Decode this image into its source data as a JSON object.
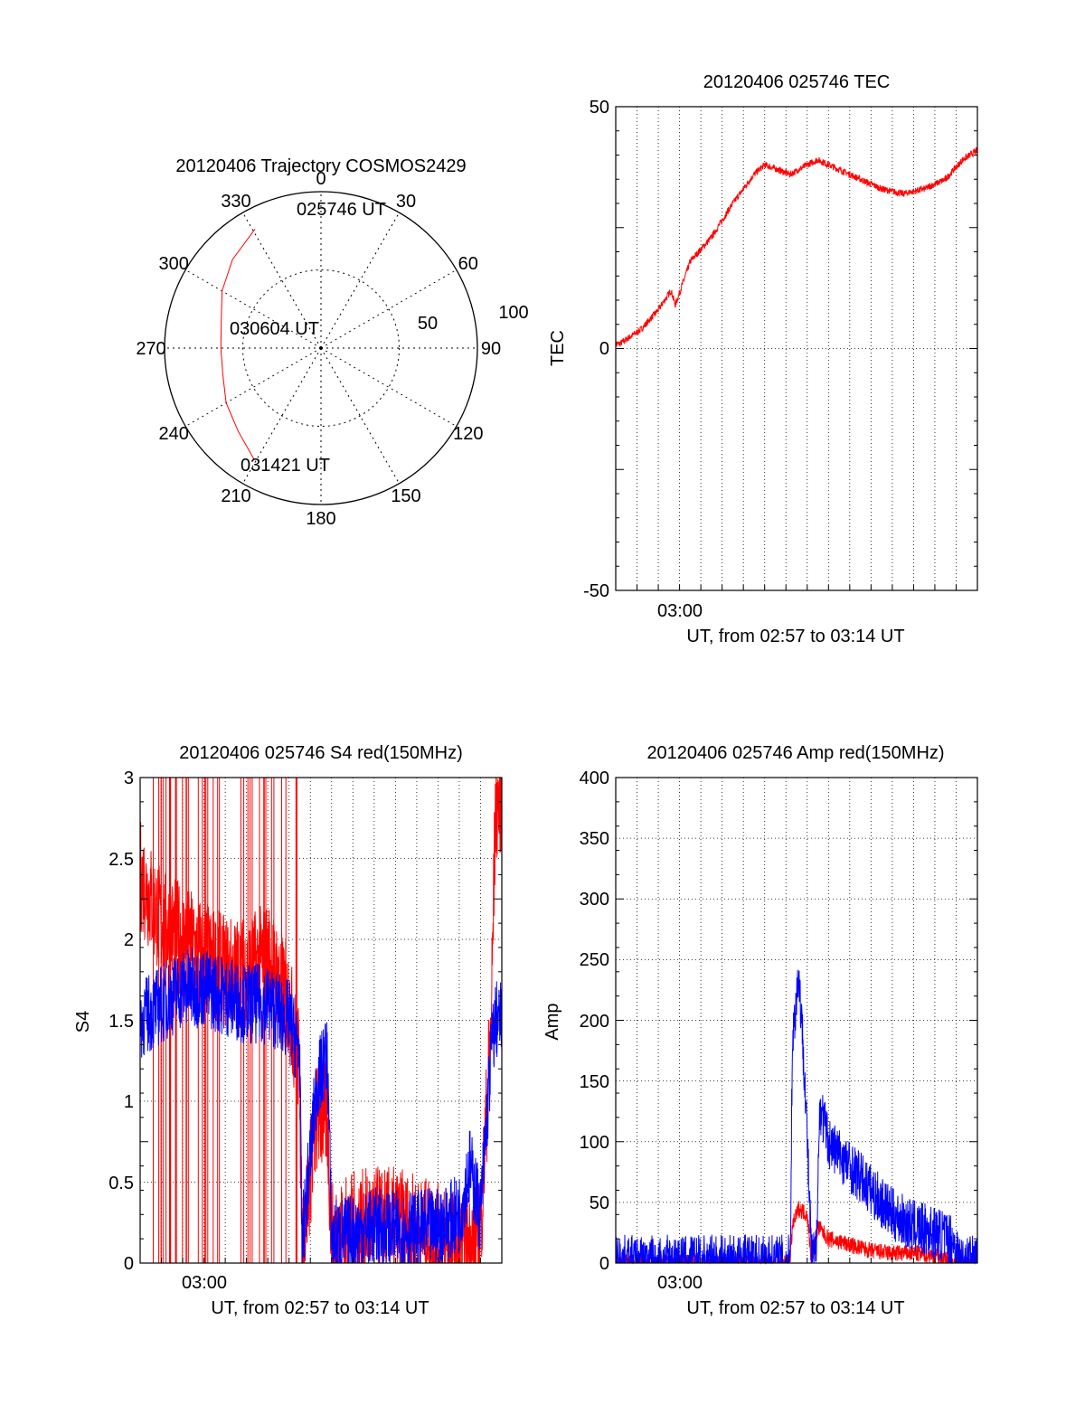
{
  "colors": {
    "red": "#ff0000",
    "blue": "#0000ff",
    "axis": "#000000",
    "grid": "#000000"
  },
  "chart_data": [
    {
      "type": "polar",
      "id": "traj",
      "title": "20120406 Trajectory COSMOS2429",
      "angle_labels": [
        "0",
        "30",
        "60",
        "90",
        "120",
        "150",
        "180",
        "210",
        "240",
        "270",
        "300",
        "330"
      ],
      "radius_labels": [
        "50",
        "100"
      ],
      "rlim": [
        0,
        100
      ],
      "annotations": [
        "025746 UT",
        "030604 UT",
        "031421 UT"
      ],
      "trajectory": {
        "color": "#ff0000",
        "points": [
          [
            331,
            87
          ],
          [
            315,
            80
          ],
          [
            300,
            73
          ],
          [
            285,
            66
          ],
          [
            270,
            64
          ],
          [
            255,
            65
          ],
          [
            240,
            70
          ],
          [
            225,
            75
          ],
          [
            211,
            83
          ]
        ]
      }
    },
    {
      "type": "line",
      "id": "tec",
      "title": "20120406 025746 TEC",
      "xlabel": "UT, from 02:57 to 03:14 UT",
      "ylabel": "TEC",
      "xlim": [
        0,
        17
      ],
      "ylim": [
        -50,
        50
      ],
      "yticks": [
        "50",
        "0",
        "-50"
      ],
      "xtick_label": "03:00",
      "grid": true,
      "series": [
        {
          "color": "#ff0000",
          "x": [
            0.2,
            1.2,
            2.0,
            2.6,
            2.8,
            3.5,
            4.5,
            5.5,
            6.5,
            7.0,
            7.6,
            8.2,
            9.0,
            9.5,
            10.5,
            11.5,
            12.5,
            13.5,
            14.5,
            15.5,
            16.3,
            17.0
          ],
          "y": [
            1,
            4,
            8,
            12,
            9,
            18,
            23,
            30,
            36,
            38,
            37,
            36,
            38,
            39,
            37,
            35,
            33,
            32,
            33,
            35,
            39,
            41
          ],
          "noise": 0.7
        }
      ]
    },
    {
      "type": "line",
      "id": "s4",
      "title": "20120406 025746 S4 red(150MHz)",
      "xlabel": "UT, from 02:57 to 03:14 UT",
      "ylabel": "S4",
      "xlim": [
        0,
        17
      ],
      "ylim": [
        0,
        3
      ],
      "yticks": [
        "3",
        "2.5",
        "2",
        "1.5",
        "1",
        "0.5",
        "0"
      ],
      "xtick_label": "03:00",
      "grid": true,
      "series": [
        {
          "color": "#ff0000",
          "x": [
            0,
            1,
            2,
            3,
            4,
            5,
            6,
            7,
            7.5,
            7.6,
            8.3,
            8.8,
            9,
            10,
            11,
            12,
            13,
            14,
            15,
            15.5,
            16,
            16.5,
            16.7,
            17
          ],
          "y": [
            2.4,
            2.1,
            2.0,
            1.9,
            1.8,
            1.8,
            1.9,
            1.6,
            1.2,
            0.1,
            0.9,
            0.9,
            0.15,
            0.22,
            0.25,
            0.25,
            0.2,
            0.15,
            0.1,
            0.1,
            0.2,
            1.5,
            2.8,
            2.9
          ],
          "noise": 0.35
        },
        {
          "color": "#0000ff",
          "x": [
            0,
            1,
            2,
            3,
            4,
            5,
            6,
            7,
            7.5,
            7.6,
            8.3,
            8.8,
            9,
            10,
            11,
            12,
            13,
            14,
            15,
            15.5,
            16,
            16.5,
            16.7,
            17
          ],
          "y": [
            1.5,
            1.6,
            1.7,
            1.7,
            1.65,
            1.6,
            1.6,
            1.5,
            1.3,
            0.1,
            1.1,
            1.3,
            0.15,
            0.18,
            0.22,
            0.2,
            0.2,
            0.22,
            0.3,
            0.6,
            0.3,
            1.3,
            1.5,
            1.5
          ],
          "noise": 0.25
        }
      ]
    },
    {
      "type": "line",
      "id": "amp",
      "title": "20120406 025746 Amp red(150MHz)",
      "xlabel": "UT, from 02:57 to 03:14 UT",
      "ylabel": "Amp",
      "xlim": [
        0,
        17
      ],
      "ylim": [
        0,
        400
      ],
      "yticks": [
        "400",
        "350",
        "300",
        "250",
        "200",
        "150",
        "100",
        "50",
        "0"
      ],
      "xtick_label": "03:00",
      "grid": true,
      "series": [
        {
          "color": "#ff0000",
          "x": [
            0,
            8.2,
            8.3,
            8.6,
            9.0,
            9.2,
            9.5,
            10,
            11,
            12,
            13,
            14,
            15,
            16,
            17
          ],
          "y": [
            0,
            0,
            30,
            45,
            40,
            2,
            30,
            20,
            15,
            10,
            8,
            8,
            6,
            0,
            0
          ],
          "noise": 7
        },
        {
          "color": "#0000ff",
          "x": [
            0,
            0.7,
            8.2,
            8.3,
            8.6,
            8.9,
            9.2,
            9.4,
            9.6,
            10,
            11,
            12,
            13,
            14,
            15,
            15.8,
            16.2,
            17
          ],
          "y": [
            2,
            1,
            2,
            180,
            240,
            150,
            5,
            5,
            130,
            100,
            80,
            60,
            40,
            30,
            25,
            20,
            2,
            1
          ],
          "noise": 22
        }
      ]
    }
  ]
}
